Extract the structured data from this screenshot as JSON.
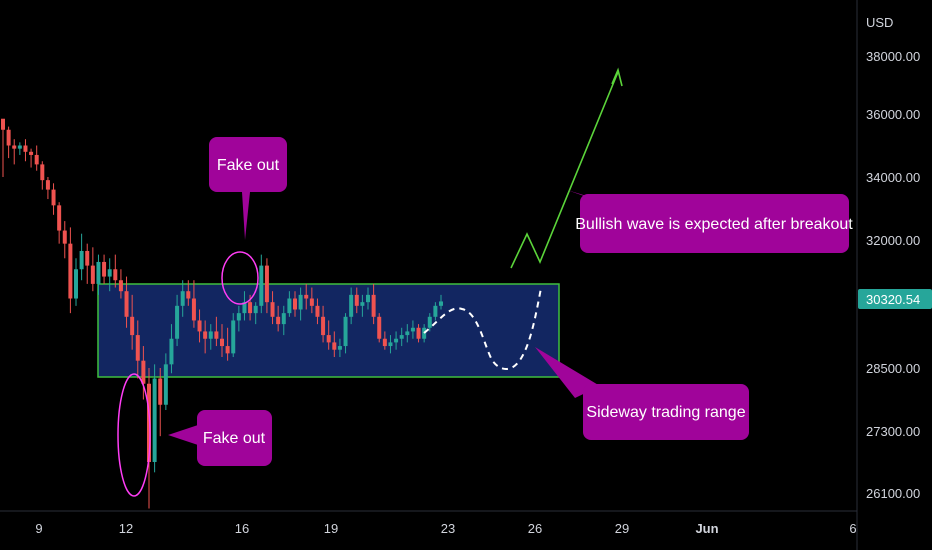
{
  "chart_data": {
    "type": "candlestick",
    "currency_label": "USD",
    "last_price": "30320.54",
    "y_ticks": [
      "38000.00",
      "36000.00",
      "34000.00",
      "32000.00",
      "28500.00",
      "27300.00",
      "26100.00"
    ],
    "x_ticks": [
      "9",
      "12",
      "16",
      "19",
      "23",
      "26",
      "29",
      "Jun",
      "6"
    ],
    "range": {
      "low": 28500,
      "high": 31000,
      "color_border": "#3fbf3f",
      "color_fill": "#142a6b"
    },
    "annotations": [
      {
        "id": "fake-out-top",
        "text": "Fake out"
      },
      {
        "id": "fake-out-bottom",
        "text": "Fake out"
      },
      {
        "id": "bullish",
        "text": "Bullish wave is expected after breakout"
      },
      {
        "id": "sideways",
        "text": "Sideway trading range"
      }
    ],
    "colors": {
      "up": "#26a69a",
      "down": "#ef5350",
      "callout": "#a0049a",
      "projection": "#5bd43a",
      "last_price_badge": "#26a69a"
    },
    "candles": [
      [
        35850,
        35800,
        34000,
        35500
      ],
      [
        35500,
        35600,
        34600,
        35000
      ],
      [
        35000,
        35200,
        34400,
        34900
      ],
      [
        34900,
        35100,
        34700,
        35000
      ],
      [
        35000,
        35200,
        34500,
        34800
      ],
      [
        34800,
        34900,
        34300,
        34700
      ],
      [
        34700,
        35000,
        34200,
        34400
      ],
      [
        34400,
        34500,
        33600,
        33900
      ],
      [
        33900,
        34000,
        33300,
        33600
      ],
      [
        33600,
        33800,
        32800,
        33100
      ],
      [
        33100,
        33200,
        31900,
        32300
      ],
      [
        32300,
        32600,
        31500,
        31900
      ],
      [
        31900,
        32400,
        30000,
        30400
      ],
      [
        30400,
        31500,
        30200,
        31200
      ],
      [
        31200,
        32200,
        30900,
        31700
      ],
      [
        31700,
        31900,
        30800,
        31300
      ],
      [
        31300,
        31800,
        30600,
        30800
      ],
      [
        30800,
        31600,
        30500,
        31400
      ],
      [
        31400,
        31600,
        30800,
        31000
      ],
      [
        31000,
        31500,
        30600,
        31200
      ],
      [
        31200,
        31600,
        30700,
        30900
      ],
      [
        30900,
        31200,
        30400,
        30600
      ],
      [
        30600,
        31000,
        29600,
        29900
      ],
      [
        29900,
        30500,
        29000,
        29400
      ],
      [
        29400,
        29800,
        28300,
        28700
      ],
      [
        28700,
        29100,
        27900,
        28200
      ],
      [
        28200,
        28500,
        25800,
        26700
      ],
      [
        26700,
        28600,
        26500,
        28300
      ],
      [
        28300,
        28500,
        27200,
        27800
      ],
      [
        27800,
        28900,
        27700,
        28600
      ],
      [
        28600,
        29700,
        28400,
        29300
      ],
      [
        29300,
        30500,
        29100,
        30200
      ],
      [
        30200,
        30900,
        29900,
        30600
      ],
      [
        30600,
        30900,
        30200,
        30400
      ],
      [
        30400,
        30900,
        29600,
        29800
      ],
      [
        29800,
        30100,
        29200,
        29500
      ],
      [
        29500,
        29800,
        28900,
        29300
      ],
      [
        29300,
        29700,
        29000,
        29500
      ],
      [
        29500,
        29900,
        29100,
        29300
      ],
      [
        29300,
        29700,
        28800,
        29100
      ],
      [
        29100,
        29600,
        28700,
        28900
      ],
      [
        28900,
        30000,
        28800,
        29800
      ],
      [
        29800,
        30200,
        29500,
        30000
      ],
      [
        30000,
        30600,
        29800,
        30300
      ],
      [
        30300,
        30500,
        29800,
        30000
      ],
      [
        30000,
        30300,
        29700,
        30200
      ],
      [
        30200,
        31600,
        30000,
        31300
      ],
      [
        31300,
        31500,
        30000,
        30300
      ],
      [
        30300,
        30600,
        29700,
        29900
      ],
      [
        29900,
        30200,
        29500,
        29700
      ],
      [
        29700,
        30200,
        29400,
        30000
      ],
      [
        30000,
        30600,
        29900,
        30400
      ],
      [
        30400,
        30600,
        29900,
        30100
      ],
      [
        30100,
        30700,
        29800,
        30500
      ],
      [
        30500,
        30800,
        30100,
        30400
      ],
      [
        30400,
        30700,
        30000,
        30200
      ],
      [
        30200,
        30400,
        29700,
        29900
      ],
      [
        29900,
        30200,
        29200,
        29400
      ],
      [
        29400,
        29800,
        29000,
        29200
      ],
      [
        29200,
        29500,
        28800,
        29000
      ],
      [
        29000,
        29300,
        28800,
        29100
      ],
      [
        29100,
        30000,
        28900,
        29900
      ],
      [
        29900,
        30700,
        29700,
        30500
      ],
      [
        30500,
        30700,
        30000,
        30200
      ],
      [
        30200,
        30500,
        29900,
        30300
      ],
      [
        30300,
        30700,
        30100,
        30500
      ],
      [
        30500,
        30800,
        29700,
        29900
      ],
      [
        29900,
        30000,
        29200,
        29300
      ],
      [
        29300,
        29500,
        29000,
        29100
      ],
      [
        29100,
        29400,
        28900,
        29200
      ],
      [
        29200,
        29500,
        29000,
        29300
      ],
      [
        29300,
        29600,
        29100,
        29400
      ],
      [
        29400,
        29700,
        29200,
        29500
      ],
      [
        29500,
        29800,
        29300,
        29600
      ],
      [
        29600,
        29700,
        29200,
        29300
      ],
      [
        29300,
        29700,
        29200,
        29600
      ],
      [
        29600,
        30000,
        29500,
        29900
      ],
      [
        29900,
        30300,
        29800,
        30200
      ],
      [
        30200,
        30500,
        30100,
        30320
      ]
    ]
  }
}
